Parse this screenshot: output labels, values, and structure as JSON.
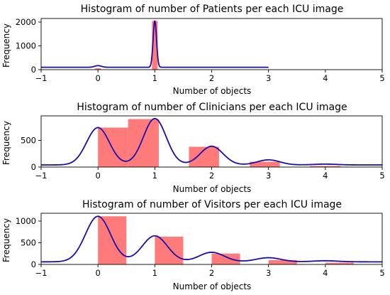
{
  "colors": {
    "bar": "#ff7b7b",
    "kde_line": "#1a0dab",
    "axis": "#000000"
  },
  "chart_data": [
    {
      "type": "bar",
      "title": "Histogram of number of Patients per each ICU image",
      "xlabel": "Number of objects",
      "ylabel": "Frequency",
      "xlim": [
        -1,
        5
      ],
      "ylim": [
        0,
        2150
      ],
      "xticks": [
        -1,
        0,
        1,
        2,
        3,
        4,
        5
      ],
      "yticks": [
        0,
        1000,
        2000
      ],
      "bars": [
        {
          "x0": -0.05,
          "x1": 0.05,
          "value": 60
        },
        {
          "x0": 0.95,
          "x1": 1.05,
          "value": 2050
        },
        {
          "x0": 1.95,
          "x1": 2.05,
          "value": 8
        },
        {
          "x0": 2.95,
          "x1": 3.05,
          "value": 2
        }
      ],
      "kde": {
        "x_range": [
          -1,
          3
        ],
        "baseline": 100,
        "peaks": [
          {
            "center": 0,
            "height": 70,
            "width": 0.06
          },
          {
            "center": 1,
            "height": 1960,
            "width": 0.03
          }
        ]
      }
    },
    {
      "type": "bar",
      "title": "Histogram of number of Clinicians per each ICU image",
      "xlabel": "Number of objects",
      "ylabel": "Frequency",
      "xlim": [
        -1,
        5
      ],
      "ylim": [
        0,
        960
      ],
      "xticks": [
        -1,
        0,
        1,
        2,
        3,
        4,
        5
      ],
      "yticks": [
        0,
        500
      ],
      "bars": [
        {
          "x0": 0.0,
          "x1": 0.53,
          "value": 740
        },
        {
          "x0": 0.53,
          "x1": 1.07,
          "value": 900
        },
        {
          "x0": 1.6,
          "x1": 2.13,
          "value": 380
        },
        {
          "x0": 2.67,
          "x1": 3.2,
          "value": 100
        },
        {
          "x0": 3.73,
          "x1": 4.27,
          "value": 20
        },
        {
          "x0": 4.8,
          "x1": 5.0,
          "value": 5
        }
      ],
      "kde": {
        "x_range": [
          -1,
          5
        ],
        "baseline": 40,
        "peaks": [
          {
            "center": 0,
            "height": 700,
            "width": 0.2
          },
          {
            "center": 1,
            "height": 870,
            "width": 0.2
          },
          {
            "center": 2,
            "height": 350,
            "width": 0.2
          },
          {
            "center": 3,
            "height": 95,
            "width": 0.2
          },
          {
            "center": 4,
            "height": 15,
            "width": 0.2
          }
        ]
      }
    },
    {
      "type": "bar",
      "title": "Histogram of number of Visitors per each ICU image",
      "xlabel": "Number of objects",
      "ylabel": "Frequency",
      "xlim": [
        -1,
        5
      ],
      "ylim": [
        0,
        1180
      ],
      "xticks": [
        -1,
        0,
        1,
        2,
        3,
        4,
        5
      ],
      "yticks": [
        0,
        500,
        1000
      ],
      "bars": [
        {
          "x0": 0.0,
          "x1": 0.5,
          "value": 1110
        },
        {
          "x0": 1.0,
          "x1": 1.5,
          "value": 640
        },
        {
          "x0": 2.0,
          "x1": 2.5,
          "value": 250
        },
        {
          "x0": 3.0,
          "x1": 3.5,
          "value": 100
        },
        {
          "x0": 4.0,
          "x1": 4.5,
          "value": 40
        }
      ],
      "kde": {
        "x_range": [
          -1,
          5
        ],
        "baseline": 60,
        "peaks": [
          {
            "center": 0,
            "height": 1050,
            "width": 0.22
          },
          {
            "center": 1,
            "height": 600,
            "width": 0.22
          },
          {
            "center": 2,
            "height": 220,
            "width": 0.22
          },
          {
            "center": 3,
            "height": 95,
            "width": 0.22
          },
          {
            "center": 4,
            "height": 25,
            "width": 0.22
          }
        ]
      }
    }
  ]
}
